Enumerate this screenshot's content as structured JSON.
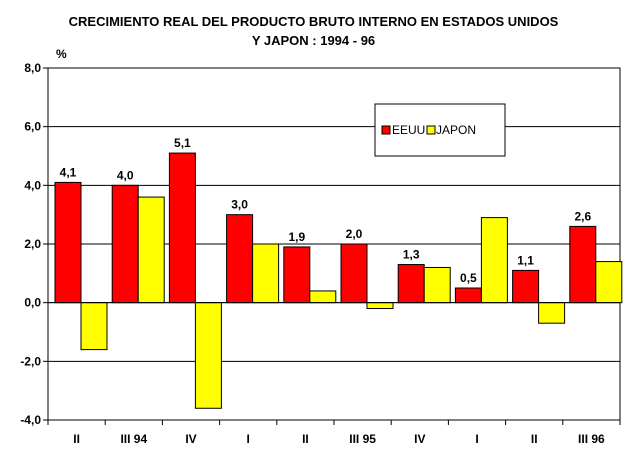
{
  "chart_data": {
    "type": "bar",
    "title": "CRECIMIENTO REAL DEL PRODUCTO BRUTO INTERNO EN ESTADOS UNIDOS",
    "subtitle": "Y JAPON : 1994 - 96",
    "ylabel": "%",
    "xlabel": "",
    "ylim": [
      -4,
      8
    ],
    "yticks": [
      8,
      6,
      4,
      2,
      0,
      -2,
      -4
    ],
    "ytick_labels": [
      "8,0",
      "6,0",
      "4,0",
      "2,0",
      "0,0",
      "-2,0",
      "-4,0"
    ],
    "grid": true,
    "categories": [
      "II",
      "III  94",
      "IV",
      "I",
      "II",
      "III  95",
      "IV",
      "I",
      "II",
      "III  96"
    ],
    "series": [
      {
        "name": "EEUU",
        "color": "#ff0000",
        "values": [
          4.1,
          4.0,
          5.1,
          3.0,
          1.9,
          2.0,
          1.3,
          0.5,
          1.1,
          2.6
        ],
        "labels": [
          "4,1",
          "4,0",
          "5,1",
          "3,0",
          "1,9",
          "2,0",
          "1,3",
          "0,5",
          "1,1",
          "2,6"
        ]
      },
      {
        "name": "JAPON",
        "color": "#ffff00",
        "values": [
          -1.6,
          3.6,
          -3.6,
          2.0,
          0.4,
          -0.2,
          1.2,
          2.9,
          -0.7,
          1.4
        ]
      }
    ],
    "legend": {
      "position": "top-right",
      "entries": [
        "EEUU",
        "JAPON"
      ]
    }
  }
}
